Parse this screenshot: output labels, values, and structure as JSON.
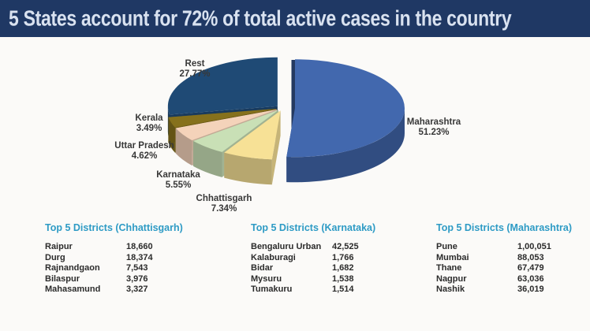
{
  "title_bar": {
    "text": "5 States account for 72% of total active cases in the country",
    "background": "#1f3864",
    "text_color": "#d9e2f0"
  },
  "theme": {
    "slide_background": "#fbfaf8",
    "table_title_color": "#2e9bc5",
    "table_text_color": "#2b2b2b",
    "pie_label_color": "#383838"
  },
  "chart_data": [
    {
      "type": "pie",
      "style": "3d_exploded",
      "title": "",
      "legend": "none",
      "labels_on_chart": true,
      "start_angle_deg": -90,
      "direction": "clockwise",
      "value_suffix": "%",
      "categories": [
        "Maharashtra",
        "Chhattisgarh",
        "Karnataka",
        "Uttar Pradesh",
        "Kerala",
        "Rest"
      ],
      "values": [
        51.23,
        7.34,
        5.55,
        4.62,
        3.49,
        27.77
      ],
      "colors": [
        "#4268ae",
        "#f7e196",
        "#c9e0b6",
        "#f4d3ba",
        "#86711c",
        "#1f4a75"
      ]
    },
    {
      "type": "table",
      "title": "Top 5 Districts (Chhattisgarh)",
      "rows": [
        [
          "Raipur",
          "18,660"
        ],
        [
          "Durg",
          "18,374"
        ],
        [
          "Rajnandgaon",
          "7,543"
        ],
        [
          "Bilaspur",
          "3,976"
        ],
        [
          "Mahasamund",
          "3,327"
        ]
      ]
    },
    {
      "type": "table",
      "title": "Top 5 Districts (Karnataka)",
      "rows": [
        [
          "Bengaluru Urban",
          "42,525"
        ],
        [
          "Kalaburagi",
          "1,766"
        ],
        [
          "Bidar",
          "1,682"
        ],
        [
          "Mysuru",
          "1,538"
        ],
        [
          "Tumakuru",
          "1,514"
        ]
      ]
    },
    {
      "type": "table",
      "title": "Top 5 Districts (Maharashtra)",
      "rows": [
        [
          "Pune",
          "1,00,051"
        ],
        [
          "Mumbai",
          "88,053"
        ],
        [
          "Thane",
          "67,479"
        ],
        [
          "Nagpur",
          "63,036"
        ],
        [
          "Nashik",
          "36,019"
        ]
      ]
    }
  ]
}
